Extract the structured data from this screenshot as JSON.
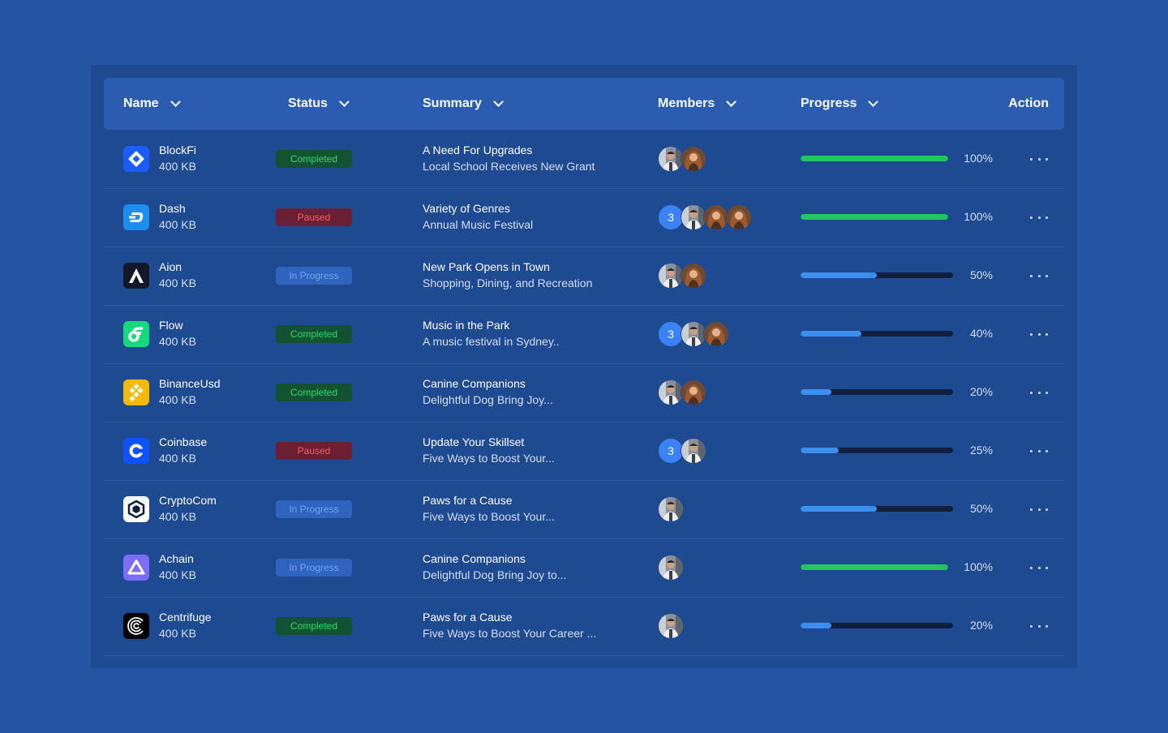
{
  "header": {
    "name": "Name",
    "status": "Status",
    "summary": "Summary",
    "members": "Members",
    "progress": "Progress",
    "action": "Action"
  },
  "colors": {
    "background": "#2454a2",
    "panel": "#1e4a92",
    "header": "#2a5db0",
    "progress_complete": "#22c55e",
    "progress_partial": "#3b8ff0",
    "track": "#0f1f3d"
  },
  "rows": [
    {
      "name": "BlockFi",
      "size": "400 KB",
      "logo": "blockfi-logo-icon",
      "status": "Completed",
      "status_type": "completed",
      "title": "A Need For Upgrades",
      "subtitle": "Local School Receives New Grant",
      "member_count": "",
      "avatars": [
        "man",
        "woman"
      ],
      "progress": 100,
      "progress_label": "100%"
    },
    {
      "name": "Dash",
      "size": "400 KB",
      "logo": "dash-logo-icon",
      "status": "Paused",
      "status_type": "paused",
      "title": "Variety of Genres",
      "subtitle": "Annual Music Festival",
      "member_count": "3",
      "avatars": [
        "man",
        "woman",
        "woman"
      ],
      "progress": 100,
      "progress_label": "100%"
    },
    {
      "name": "Aion",
      "size": "400 KB",
      "logo": "aion-logo-icon",
      "status": "In Progress",
      "status_type": "progress",
      "title": "New Park Opens in Town",
      "subtitle": "Shopping, Dining, and Recreation",
      "member_count": "",
      "avatars": [
        "man",
        "woman"
      ],
      "progress": 50,
      "progress_label": "50%"
    },
    {
      "name": "Flow",
      "size": "400 KB",
      "logo": "flow-logo-icon",
      "status": "Completed",
      "status_type": "completed",
      "title": "Music in the Park",
      "subtitle": "A music festival in Sydney..",
      "member_count": "3",
      "avatars": [
        "man",
        "woman"
      ],
      "progress": 40,
      "progress_label": "40%"
    },
    {
      "name": "BinanceUsd",
      "size": "400 KB",
      "logo": "binanceusd-logo-icon",
      "status": "Completed",
      "status_type": "completed",
      "title": "Canine Companions",
      "subtitle": "Delightful Dog Bring Joy...",
      "member_count": "",
      "avatars": [
        "man",
        "woman"
      ],
      "progress": 20,
      "progress_label": "20%"
    },
    {
      "name": "Coinbase",
      "size": "400 KB",
      "logo": "coinbase-logo-icon",
      "status": "Paused",
      "status_type": "paused",
      "title": "Update Your Skillset",
      "subtitle": "Five Ways to Boost Your...",
      "member_count": "3",
      "avatars": [
        "man"
      ],
      "progress": 25,
      "progress_label": "25%"
    },
    {
      "name": "CryptoCom",
      "size": "400 KB",
      "logo": "cryptocom-logo-icon",
      "status": "In Progress",
      "status_type": "progress",
      "title": "Paws for a Cause",
      "subtitle": "Five Ways to Boost Your...",
      "member_count": "",
      "avatars": [
        "man"
      ],
      "progress": 50,
      "progress_label": "50%"
    },
    {
      "name": "Achain",
      "size": "400 KB",
      "logo": "achain-logo-icon",
      "status": "In Progress",
      "status_type": "progress",
      "title": "Canine Companions",
      "subtitle": "Delightful Dog Bring Joy to...",
      "member_count": "",
      "avatars": [
        "man"
      ],
      "progress": 100,
      "progress_label": "100%"
    },
    {
      "name": "Centrifuge",
      "size": "400 KB",
      "logo": "centrifuge-logo-icon",
      "status": "Completed",
      "status_type": "completed",
      "title": "Paws for a Cause",
      "subtitle": "Five Ways to Boost Your Career ...",
      "member_count": "",
      "avatars": [
        "man"
      ],
      "progress": 20,
      "progress_label": "20%"
    }
  ]
}
